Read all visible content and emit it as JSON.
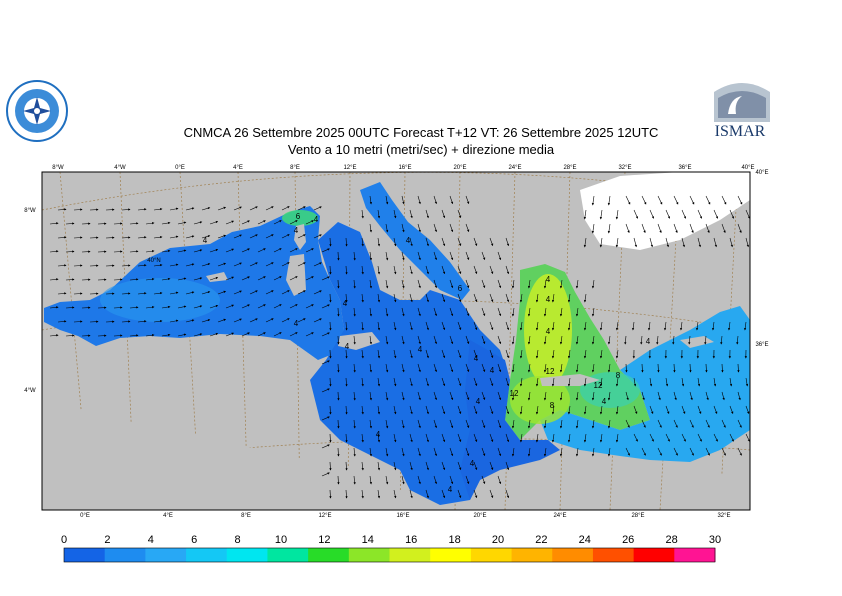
{
  "header": {
    "title_line1": "CNMCA 26 Settembre 2025 00UTC Forecast T+12 VT: 26 Settembre 2025 12UTC",
    "title_line2": "Vento a 10 metri (metri/sec) + direzione media"
  },
  "logos": {
    "left": "cnmca-logo",
    "right_text": "ISMAR"
  },
  "map": {
    "top_lon_labels": [
      "8°W",
      "4°W",
      "0°E",
      "4°E",
      "8°E",
      "12°E",
      "16°E",
      "20°E",
      "24°E",
      "28°E",
      "32°E",
      "36°E",
      "40°E"
    ],
    "bottom_lon_labels": [
      "0°E",
      "4°E",
      "8°E",
      "12°E",
      "16°E",
      "20°E",
      "24°E",
      "28°E",
      "32°E"
    ],
    "left_lat_labels": [
      "8°W",
      "40°N",
      "4°W"
    ],
    "right_lat_labels": [
      "40°E",
      "36°E"
    ],
    "contour_labels": [
      "4",
      "4",
      "6",
      "4",
      "4",
      "4",
      "4",
      "4",
      "4",
      "4",
      "4",
      "6",
      "4",
      "4",
      "4",
      "4",
      "4",
      "12",
      "12",
      "8",
      "12",
      "8",
      "4",
      "4",
      "4",
      "4"
    ],
    "land_color": "#c0c0c0",
    "water_base_color": "#1e64e6"
  },
  "colorbar": {
    "labels": [
      "0",
      "2",
      "4",
      "6",
      "8",
      "10",
      "12",
      "14",
      "16",
      "18",
      "20",
      "22",
      "24",
      "26",
      "28",
      "30"
    ],
    "colors": [
      "#1464e6",
      "#1e8cf0",
      "#28a8f5",
      "#14c8f5",
      "#00e6f0",
      "#00e6a0",
      "#28dc28",
      "#8ce628",
      "#d2f01e",
      "#ffff00",
      "#ffd700",
      "#ffb400",
      "#ff8c00",
      "#ff5000",
      "#ff0000",
      "#ff1493"
    ]
  }
}
